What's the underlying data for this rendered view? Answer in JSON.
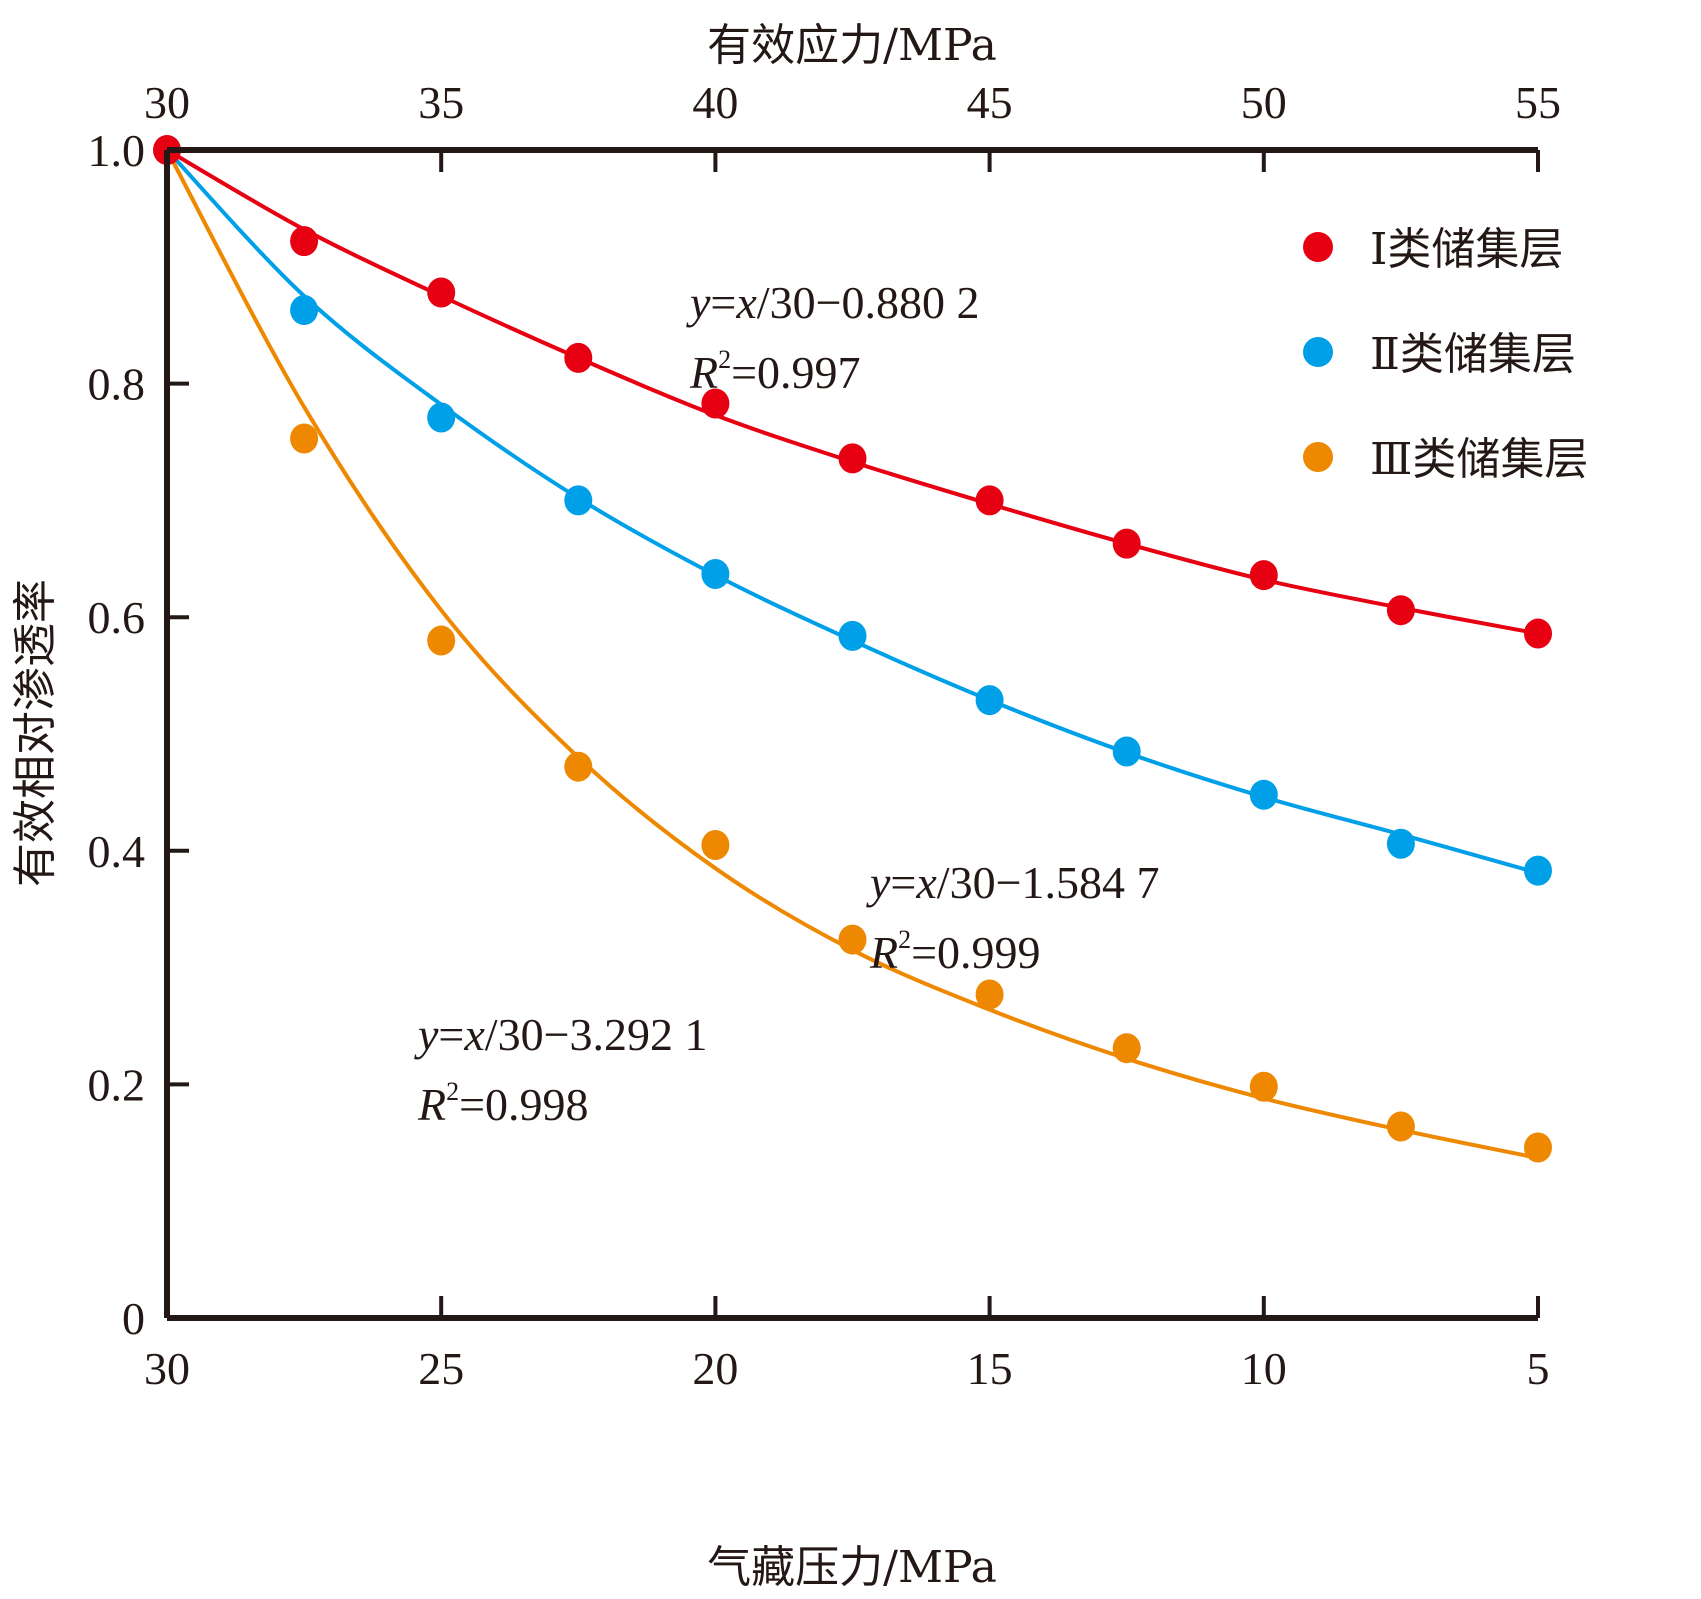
{
  "chart_data": {
    "type": "scatter",
    "title": "",
    "xlabel": "气藏压力/MPa",
    "xlabel_top": "有效应力/MPa",
    "ylabel": "有效相对渗透率",
    "x_reversed": true,
    "xlim": [
      30,
      5
    ],
    "xlim_top": [
      30,
      55
    ],
    "ylim": [
      0,
      1.0
    ],
    "x_ticks": [
      30,
      25,
      20,
      15,
      10,
      5
    ],
    "x_tick_labels": [
      "30",
      "25",
      "20",
      "15",
      "10",
      "5"
    ],
    "x_top_ticks": [
      30,
      35,
      40,
      45,
      50,
      55
    ],
    "x_top_tick_labels": [
      "30",
      "35",
      "40",
      "45",
      "50",
      "55"
    ],
    "y_ticks": [
      0,
      0.2,
      0.4,
      0.6,
      0.8,
      1.0
    ],
    "y_tick_labels": [
      "0",
      "0.2",
      "0.4",
      "0.6",
      "0.8",
      "1.0"
    ],
    "grid": false,
    "legend_position": "top-right",
    "x": [
      30,
      27.5,
      25,
      22.5,
      20,
      17.5,
      15,
      12.5,
      10,
      7.5,
      5
    ],
    "series": [
      {
        "name": "Ⅰ类储集层",
        "color": "#e60012",
        "values": [
          1.0,
          0.922,
          0.878,
          0.822,
          0.783,
          0.736,
          0.7,
          0.663,
          0.636,
          0.606,
          0.586
        ],
        "fit_curve": [
          1.0,
          0.932,
          0.875,
          0.822,
          0.773,
          0.733,
          0.697,
          0.663,
          0.632,
          0.608,
          0.586
        ],
        "annotation": {
          "equation": [
            "y",
            "=",
            "x",
            "/30−0.880 2"
          ],
          "r2_label": "R",
          "r2_value": "=0.997"
        }
      },
      {
        "name": "Ⅱ类储集层",
        "color": "#00a0e9",
        "values": [
          1.0,
          0.863,
          0.771,
          0.7,
          0.637,
          0.584,
          0.529,
          0.485,
          0.448,
          0.406,
          0.383
        ],
        "fit_curve": [
          1.0,
          0.875,
          0.782,
          0.702,
          0.636,
          0.58,
          0.529,
          0.484,
          0.446,
          0.414,
          0.381
        ],
        "annotation": {
          "equation": [
            "y",
            "=",
            "x",
            "/30−1.584 7"
          ],
          "r2_label": "R",
          "r2_value": "=0.999"
        }
      },
      {
        "name": "Ⅲ类储集层",
        "color": "#ee8800",
        "values": [
          1.0,
          0.753,
          0.58,
          0.472,
          0.405,
          0.324,
          0.277,
          0.231,
          0.198,
          0.164,
          0.146
        ],
        "fit_curve": [
          1.0,
          0.78,
          0.606,
          0.48,
          0.385,
          0.315,
          0.264,
          0.222,
          0.188,
          0.161,
          0.137
        ],
        "annotation": {
          "equation": [
            "y",
            "=",
            "x",
            "/30−3.292 1"
          ],
          "r2_label": "R",
          "r2_value": "=0.998"
        }
      }
    ]
  },
  "annotation_superscript": "2"
}
